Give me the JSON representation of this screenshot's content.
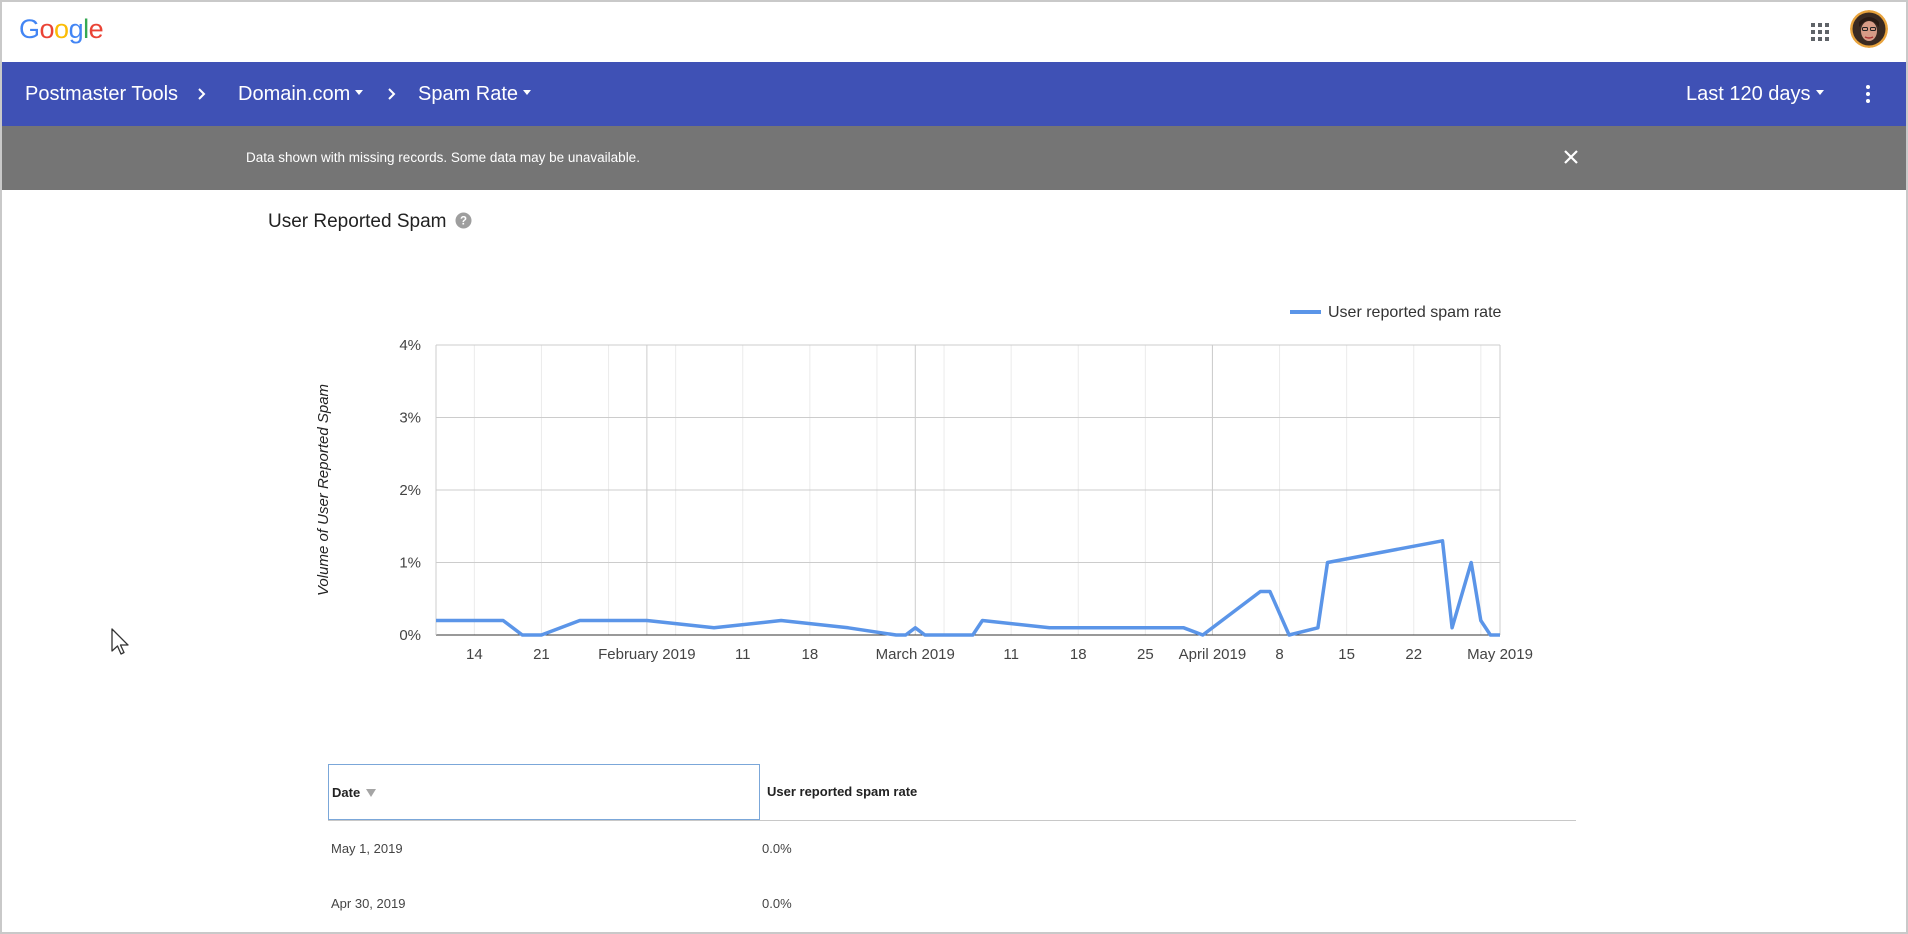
{
  "logo_text": "Google",
  "header": {
    "crumbs": [
      "Postmaster Tools",
      "Domain.com",
      "Spam Rate"
    ],
    "range_label": "Last 120 days"
  },
  "banner": {
    "text": "Data shown with missing records. Some data may be unavailable."
  },
  "section": {
    "title": "User Reported Spam"
  },
  "colors": {
    "brand": "#3f51b5",
    "banner": "#757575",
    "series": "#5b95e8"
  },
  "chart_data": {
    "type": "line",
    "title": "",
    "ylabel": "Volume of User Reported Spam",
    "ylim": [
      0,
      4
    ],
    "yticks": [
      "0%",
      "1%",
      "2%",
      "3%",
      "4%"
    ],
    "xlim": [
      "2019-01-10",
      "2019-05-01"
    ],
    "xticks": [
      {
        "date": "2019-01-14",
        "label": "14"
      },
      {
        "date": "2019-01-21",
        "label": "21"
      },
      {
        "date": "2019-02-01",
        "label": "February 2019"
      },
      {
        "date": "2019-02-11",
        "label": "11"
      },
      {
        "date": "2019-02-18",
        "label": "18"
      },
      {
        "date": "2019-03-01",
        "label": "March 2019"
      },
      {
        "date": "2019-03-11",
        "label": "11"
      },
      {
        "date": "2019-03-18",
        "label": "18"
      },
      {
        "date": "2019-03-25",
        "label": "25"
      },
      {
        "date": "2019-04-01",
        "label": "April 2019"
      },
      {
        "date": "2019-04-08",
        "label": "8"
      },
      {
        "date": "2019-04-15",
        "label": "15"
      },
      {
        "date": "2019-04-22",
        "label": "22"
      },
      {
        "date": "2019-05-01",
        "label": "May 2019"
      }
    ],
    "series": [
      {
        "name": "User reported spam rate",
        "points": [
          [
            "2019-01-10",
            0.2
          ],
          [
            "2019-01-17",
            0.2
          ],
          [
            "2019-01-19",
            0.0
          ],
          [
            "2019-01-21",
            0.0
          ],
          [
            "2019-01-25",
            0.2
          ],
          [
            "2019-02-01",
            0.2
          ],
          [
            "2019-02-08",
            0.1
          ],
          [
            "2019-02-15",
            0.2
          ],
          [
            "2019-02-22",
            0.1
          ],
          [
            "2019-02-27",
            0.0
          ],
          [
            "2019-02-28",
            0.0
          ],
          [
            "2019-03-01",
            0.1
          ],
          [
            "2019-03-02",
            0.0
          ],
          [
            "2019-03-07",
            0.0
          ],
          [
            "2019-03-08",
            0.2
          ],
          [
            "2019-03-15",
            0.1
          ],
          [
            "2019-03-29",
            0.1
          ],
          [
            "2019-03-31",
            0.0
          ],
          [
            "2019-04-06",
            0.6
          ],
          [
            "2019-04-07",
            0.6
          ],
          [
            "2019-04-09",
            0.0
          ],
          [
            "2019-04-12",
            0.1
          ],
          [
            "2019-04-13",
            1.0
          ],
          [
            "2019-04-25",
            1.3
          ],
          [
            "2019-04-26",
            0.1
          ],
          [
            "2019-04-28",
            1.0
          ],
          [
            "2019-04-29",
            0.2
          ],
          [
            "2019-04-30",
            0.0
          ],
          [
            "2019-05-01",
            0.0
          ]
        ]
      }
    ]
  },
  "table": {
    "headers": {
      "date": "Date",
      "rate": "User reported spam rate"
    },
    "rows": [
      {
        "date": "May 1, 2019",
        "rate": "0.0%"
      },
      {
        "date": "Apr 30, 2019",
        "rate": "0.0%"
      }
    ]
  }
}
